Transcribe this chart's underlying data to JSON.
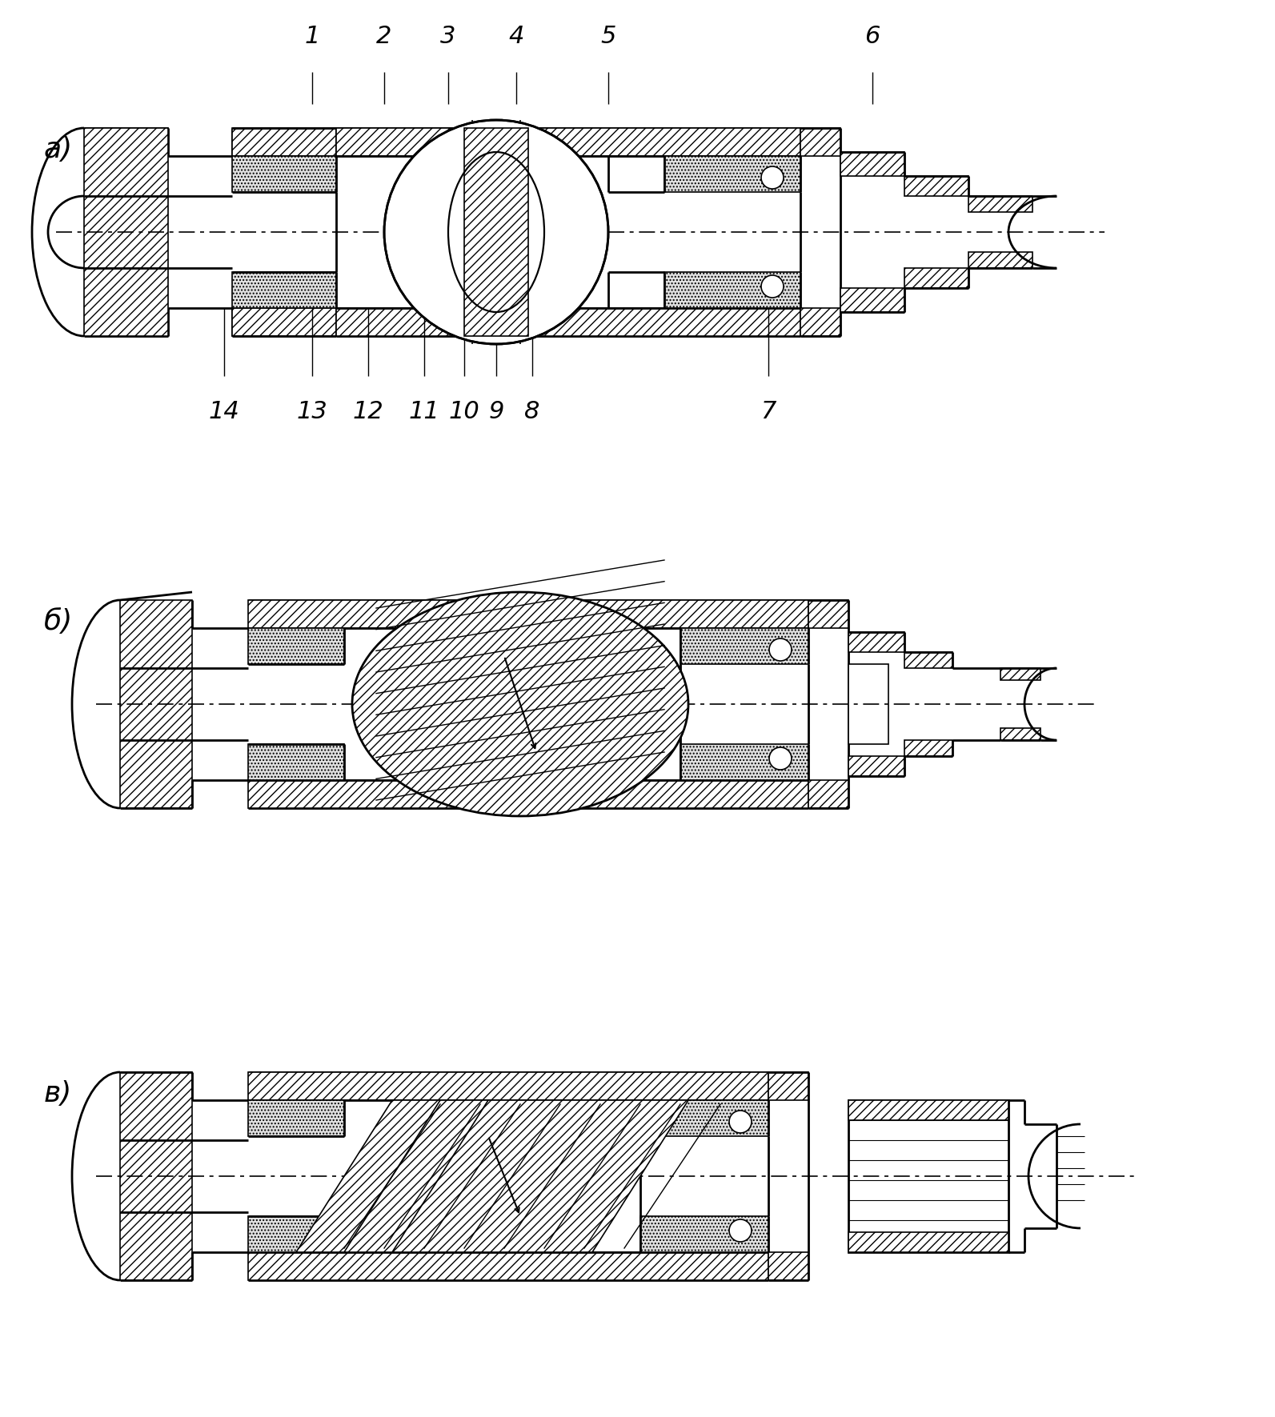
{
  "background_color": "#ffffff",
  "line_color": "#000000",
  "labels_top": [
    "1",
    "2",
    "3",
    "4",
    "5",
    "6"
  ],
  "labels_bottom": [
    "14",
    "13",
    "12",
    "11",
    "10",
    "9",
    "8",
    "7"
  ],
  "variant_labels": [
    "а)",
    "б)",
    "в)"
  ],
  "fig_width": 15.93,
  "fig_height": 17.71,
  "dpi": 100
}
